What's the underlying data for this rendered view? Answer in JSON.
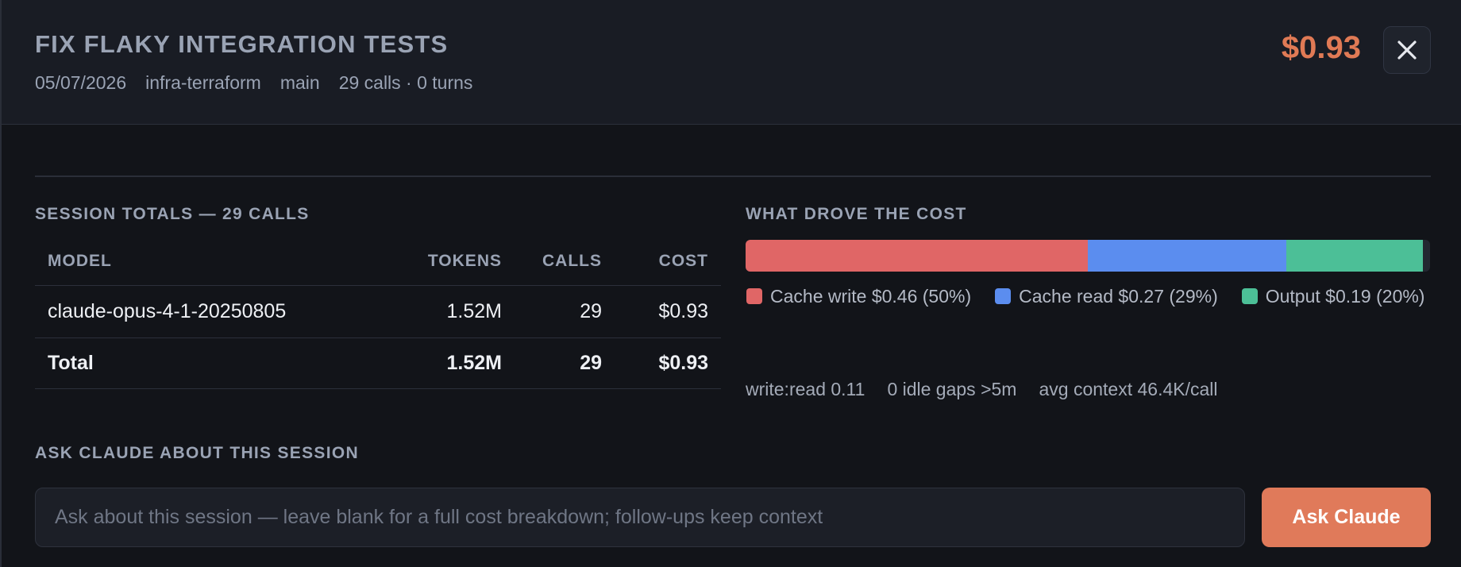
{
  "header": {
    "title": "FIX FLAKY INTEGRATION TESTS",
    "date": "05/07/2026",
    "project": "infra-terraform",
    "branch": "main",
    "calls_turns": "29 calls · 0 turns",
    "total_cost": "$0.93",
    "close_icon": "close-icon"
  },
  "totals": {
    "label": "SESSION TOTALS — 29 CALLS",
    "columns": [
      "MODEL",
      "TOKENS",
      "CALLS",
      "COST"
    ],
    "rows": [
      {
        "model": "claude-opus-4-1-20250805",
        "tokens": "1.52M",
        "calls": "29",
        "cost": "$0.93"
      }
    ],
    "total": {
      "label": "Total",
      "tokens": "1.52M",
      "calls": "29",
      "cost": "$0.93"
    }
  },
  "cost_drivers": {
    "label": "WHAT DROVE THE COST",
    "segments": [
      {
        "name": "Cache write",
        "legend": "Cache write $0.46 (50%)",
        "fraction": 0.5,
        "color": "#e06666"
      },
      {
        "name": "Cache read",
        "legend": "Cache read $0.27 (29%)",
        "fraction": 0.29,
        "color": "#5b8def"
      },
      {
        "name": "Output",
        "legend": "Output $0.19 (20%)",
        "fraction": 0.2,
        "color": "#4cbf97"
      }
    ],
    "stats": [
      "write:read 0.11",
      "0 idle gaps >5m",
      "avg context 46.4K/call"
    ]
  },
  "ask": {
    "label": "ASK CLAUDE ABOUT THIS SESSION",
    "placeholder": "Ask about this session — leave blank for a full cost breakdown; follow-ups keep context",
    "value": "",
    "button_label": "Ask Claude"
  },
  "colors": {
    "accent": "#e07a5a",
    "cost_text": "#e07a55",
    "background": "#121419",
    "header_bg": "#191c24"
  }
}
